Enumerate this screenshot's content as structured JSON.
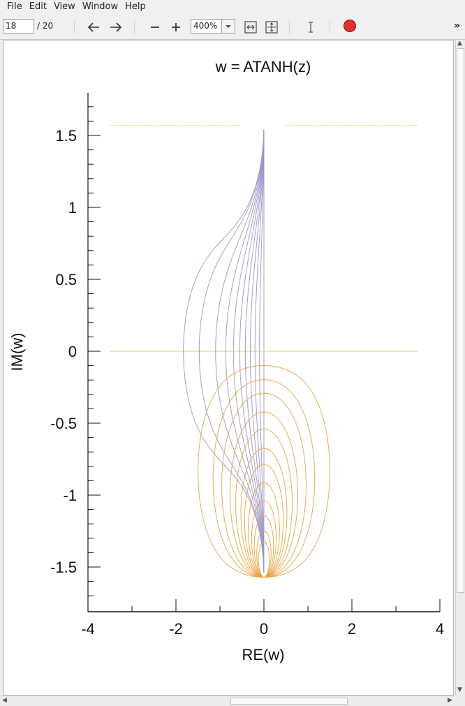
{
  "menubar": {
    "items": [
      "File",
      "Edit",
      "View",
      "Window",
      "Help"
    ]
  },
  "toolbar": {
    "page_current": "18",
    "page_total": "/ 20",
    "zoom": "400%",
    "icons": [
      "arrow-left-icon",
      "arrow-right-icon",
      "zoom-out-icon",
      "zoom-in-icon",
      "zoom-dropdown-icon",
      "fit-width-icon",
      "fit-page-icon",
      "text-cursor-icon",
      "record-icon",
      "overflow-chevron-icon"
    ]
  },
  "colors": {
    "purple_series": "#9b93c7",
    "orange_series": "#e8a23a",
    "record": "#e03030"
  },
  "chart_data": {
    "type": "line",
    "title": "w = ATANH(z)",
    "xlabel": "RE(w)",
    "ylabel": "IM(w)",
    "xlim": [
      -4,
      4
    ],
    "ylim": [
      -1.75,
      1.8
    ],
    "xticks": [
      "-4",
      "-2",
      "0",
      "2",
      "4"
    ],
    "yticks": [
      "1.5",
      "1",
      "0.5",
      "0",
      "-0.5",
      "-1",
      "-1.5"
    ],
    "grid": false,
    "series": [
      {
        "color": "#9b93c7",
        "values": "curves of constant Re(z) mapped by atanh"
      },
      {
        "color": "#e8a23a",
        "values": "curves of constant Im(z) mapped by atanh"
      }
    ]
  }
}
